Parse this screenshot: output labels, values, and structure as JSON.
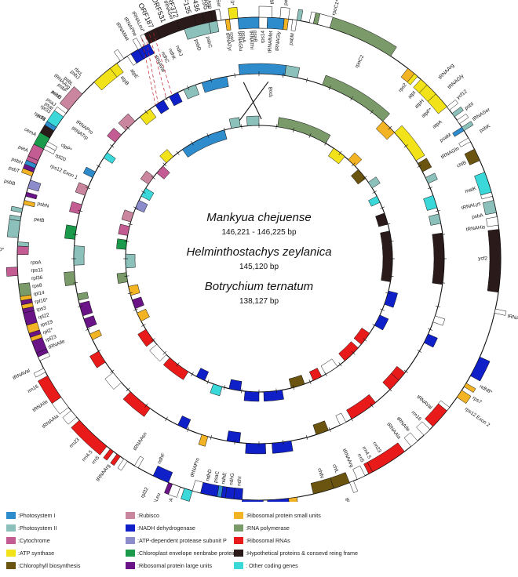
{
  "species": [
    {
      "name": "Mankyua chejuense",
      "size": "146,221 - 146,225 bp"
    },
    {
      "name": "Helminthostachys zeylanica",
      "size": "145,120 bp"
    },
    {
      "name": "Botrychium ternatum",
      "size": "138,127 bp"
    }
  ],
  "colors": {
    "photosystem_i": "#2e8ccc",
    "photosystem_ii": "#8cc0bb",
    "cytochrome": "#c45c94",
    "atp_synthase": "#f2e21a",
    "chlorophyll": "#6b5410",
    "rubisco": "#c9869e",
    "nadh": "#1020c8",
    "clp": "#8c8ccc",
    "envelope": "#1a9a4a",
    "rpl": "#6a1488",
    "rps": "#f2b324",
    "rna_pol": "#7a9a6a",
    "rrna": "#e81a1a",
    "ycf": "#2a1a1a",
    "other": "#3ad8d8",
    "trna": "#ffffff"
  },
  "legend": [
    {
      "key": "photosystem_i",
      "label": ":Photosystem I"
    },
    {
      "key": "photosystem_ii",
      "label": ":Photosystem II"
    },
    {
      "key": "cytochrome",
      "label": ":Cytochrome"
    },
    {
      "key": "atp_synthase",
      "label": ":ATP synthase"
    },
    {
      "key": "chlorophyll",
      "label": ":Chlorophyll biosynthesis"
    },
    {
      "key": "rubisco",
      "label": ":Rubisco"
    },
    {
      "key": "nadh",
      "label": ":NADH dehydrogenase"
    },
    {
      "key": "clp",
      "label": ":ATP-dependent protease subunit P"
    },
    {
      "key": "envelope",
      "label": ":Chloroplast envelope nenbrabe protein"
    },
    {
      "key": "rpl",
      "label": ":Ribosomal protein large units"
    },
    {
      "key": "rps",
      "label": ":Ribosomal protein small units"
    },
    {
      "key": "rna_pol",
      "label": ":RNA polymerase"
    },
    {
      "key": "rrna",
      "label": ":Ribosomal RNAs"
    },
    {
      "key": "ycf",
      "label": ":Hypothetical proteins & consevd reing frame"
    },
    {
      "key": "other",
      "label": ": Other coding genes"
    }
  ],
  "labels": [
    {
      "t": "tRNACys",
      "a": 3,
      "s": "out",
      "r": 0
    },
    {
      "t": "petN",
      "a": 6,
      "s": "out",
      "r": 0
    },
    {
      "t": "psbM",
      "a": 8.5,
      "s": "in",
      "r": 0
    },
    {
      "t": "tRNAAsp",
      "a": 349,
      "s": "out",
      "r": 0
    },
    {
      "t": "tRNATyr",
      "a": 352,
      "s": "in",
      "r": 0
    },
    {
      "t": "tRNAGlu",
      "a": 355,
      "s": "in",
      "r": 0
    },
    {
      "t": "tRNAThr",
      "a": 358,
      "s": "in",
      "r": 0
    },
    {
      "t": "tRNASer",
      "a": 340,
      "s": "out",
      "r": 0
    },
    {
      "t": "psbD",
      "a": 344,
      "s": "in",
      "r": 0
    },
    {
      "t": "psbC",
      "a": 347,
      "s": "in",
      "r": 0
    },
    {
      "t": "rpoC1*",
      "a": 17,
      "s": "out",
      "r": 0
    },
    {
      "t": "rpoC2",
      "a": 27,
      "s": "in",
      "r": 0
    },
    {
      "t": "rps2",
      "a": 40,
      "s": "in",
      "r": 0
    },
    {
      "t": "atpI",
      "a": 43,
      "s": "in",
      "r": 0
    },
    {
      "t": "atpH",
      "a": 46,
      "s": "in",
      "r": 0
    },
    {
      "t": "atpF*",
      "a": 49,
      "s": "in",
      "r": 0
    },
    {
      "t": "atpA",
      "a": 53,
      "s": "in",
      "r": 0
    },
    {
      "t": "tRNAArg",
      "a": 45,
      "s": "out",
      "r": 0
    },
    {
      "t": "tRNAGly",
      "a": 48,
      "s": "out",
      "r": 0
    },
    {
      "t": "ycf12",
      "a": 51,
      "s": "out",
      "r": 0
    },
    {
      "t": "psbI",
      "a": 54,
      "s": "out",
      "r": 0
    },
    {
      "t": "tRNASer",
      "a": 57,
      "s": "out",
      "r": 0
    },
    {
      "t": "psbK",
      "a": 60,
      "s": "out",
      "r": 0
    },
    {
      "t": "psaM",
      "a": 57,
      "s": "in",
      "r": 0
    },
    {
      "t": "tRNAGln",
      "a": 61,
      "s": "in",
      "r": 0
    },
    {
      "t": "chlB",
      "a": 65,
      "s": "in",
      "r": 0
    },
    {
      "t": "matK",
      "a": 72,
      "s": "in",
      "r": 0
    },
    {
      "t": "tRNALys",
      "a": 76,
      "s": "in",
      "r": 0
    },
    {
      "t": "psbA",
      "a": 79,
      "s": "in",
      "r": 0
    },
    {
      "t": "tRNAHis",
      "a": 82,
      "s": "in",
      "r": 0
    },
    {
      "t": "ycf2",
      "a": 90,
      "s": "in",
      "r": 0
    },
    {
      "t": "tRNALeu",
      "a": 103,
      "s": "out",
      "r": 0
    },
    {
      "t": "ndhB*",
      "a": 120,
      "s": "out",
      "r": 0
    },
    {
      "t": "rps7",
      "a": 123,
      "s": "out",
      "r": 0
    },
    {
      "t": "rps12 Exon 2",
      "a": 126,
      "s": "out",
      "r": 0
    },
    {
      "t": "tRNAVal",
      "a": 131,
      "s": "in",
      "r": 0
    },
    {
      "t": "rrn16",
      "a": 135,
      "s": "in",
      "r": 0
    },
    {
      "t": "tRNAIle",
      "a": 139,
      "s": "in",
      "r": 0
    },
    {
      "t": "tRNAAla",
      "a": 142,
      "s": "in",
      "r": 0
    },
    {
      "t": "rrn23",
      "a": 148,
      "s": "in",
      "r": 0
    },
    {
      "t": "rrn4.5",
      "a": 151,
      "s": "in",
      "r": 0
    },
    {
      "t": "rrn5",
      "a": 153,
      "s": "in",
      "r": 0
    },
    {
      "t": "tRNAArg",
      "a": 156,
      "s": "in",
      "r": 0
    },
    {
      "t": "tRNAAsn",
      "a": 160,
      "s": "out",
      "r": 0
    },
    {
      "t": "chlL",
      "a": 160,
      "s": "in",
      "r": 0
    },
    {
      "t": "chlN",
      "a": 164,
      "s": "in",
      "r": 0
    },
    {
      "t": "rps15",
      "a": 175,
      "s": "out",
      "r": 0
    },
    {
      "t": "ndhH",
      "a": 178,
      "s": "out",
      "r": 0
    },
    {
      "t": "ndhA*",
      "a": 182,
      "s": "out",
      "r": 0
    },
    {
      "t": "ndhI",
      "a": 185,
      "s": "in",
      "r": 0
    },
    {
      "t": "ndhG",
      "a": 187,
      "s": "in",
      "r": 0
    },
    {
      "t": "ndhE",
      "a": 189,
      "s": "in",
      "r": 0
    },
    {
      "t": "psaC",
      "a": 191,
      "s": "in",
      "r": 0
    },
    {
      "t": "ndhD",
      "a": 193,
      "s": "in",
      "r": 0
    },
    {
      "t": "ccsA",
      "a": 200,
      "s": "out",
      "r": 0
    },
    {
      "t": "tRNALeu",
      "a": 203,
      "s": "out",
      "r": 0
    },
    {
      "t": "rpl32",
      "a": 206,
      "s": "out",
      "r": 0
    },
    {
      "t": "ndhF",
      "a": 206,
      "s": "in",
      "r": 0
    },
    {
      "t": "tRNAPro",
      "a": 197,
      "s": "in",
      "r": 0
    },
    {
      "t": "tRNAAsn",
      "a": 213,
      "s": "in",
      "r": 0
    },
    {
      "t": "tRNAArg",
      "a": 216,
      "s": "out",
      "r": 0
    },
    {
      "t": "rrn5",
      "a": 219,
      "s": "out",
      "r": 0
    },
    {
      "t": "rrn4.5",
      "a": 221,
      "s": "out",
      "r": 0
    },
    {
      "t": "rrn23",
      "a": 225,
      "s": "out",
      "r": 0
    },
    {
      "t": "tRNAAla",
      "a": 232,
      "s": "out",
      "r": 0
    },
    {
      "t": "tRNAIle",
      "a": 236,
      "s": "out",
      "r": 0
    },
    {
      "t": "rrn16",
      "a": 240,
      "s": "out",
      "r": 0
    },
    {
      "t": "tRNAVal",
      "a": 244,
      "s": "out",
      "r": 0
    },
    {
      "t": "tRNAIle",
      "a": 247,
      "s": "in",
      "r": 0
    },
    {
      "t": "rpl23",
      "a": 249,
      "s": "in",
      "r": 0
    },
    {
      "t": "rpl2*",
      "a": 251,
      "s": "in",
      "r": 0
    },
    {
      "t": "rps19",
      "a": 253,
      "s": "in",
      "r": 0
    },
    {
      "t": "rpl22",
      "a": 255,
      "s": "in",
      "r": 0
    },
    {
      "t": "rps3",
      "a": 257,
      "s": "in",
      "r": 0
    },
    {
      "t": "rpl16*",
      "a": 259,
      "s": "in",
      "r": 0
    },
    {
      "t": "rpl14",
      "a": 261,
      "s": "in",
      "r": 0
    },
    {
      "t": "rps8",
      "a": 263,
      "s": "in",
      "r": 0
    },
    {
      "t": "rpl36",
      "a": 265,
      "s": "in",
      "r": 0
    },
    {
      "t": "rps11",
      "a": 267,
      "s": "in",
      "r": 0
    },
    {
      "t": "rpoA",
      "a": 269,
      "s": "in",
      "r": 0
    },
    {
      "t": "petD*",
      "a": 272,
      "s": "out",
      "r": 0
    },
    {
      "t": "petB",
      "a": 280,
      "s": "in",
      "r": 0
    },
    {
      "t": "psbN",
      "a": 284,
      "s": "in",
      "r": 0
    },
    {
      "t": "psbB",
      "a": 287,
      "s": "out",
      "r": 0
    },
    {
      "t": "psbT",
      "a": 290,
      "s": "out",
      "r": 0
    },
    {
      "t": "psbH",
      "a": 292,
      "s": "out",
      "r": 0
    },
    {
      "t": "rps12 Exon 1",
      "a": 294,
      "s": "in",
      "r": 0
    },
    {
      "t": "rpl20",
      "a": 297,
      "s": "in",
      "r": 0
    },
    {
      "t": "clpP*",
      "a": 300,
      "s": "in",
      "r": 0
    },
    {
      "t": "rps18",
      "a": 303,
      "s": "out",
      "r": 0
    },
    {
      "t": "rpl33",
      "a": 305,
      "s": "out",
      "r": 0
    },
    {
      "t": "psaJ",
      "a": 307,
      "s": "out",
      "r": 0
    },
    {
      "t": "psbE",
      "a": 309,
      "s": "out",
      "r": 0
    },
    {
      "t": "psbF",
      "a": 311,
      "s": "out",
      "r": 0
    },
    {
      "t": "psbL",
      "a": 313,
      "s": "out",
      "r": 0
    },
    {
      "t": "psbJ",
      "a": 315,
      "s": "out",
      "r": 0
    },
    {
      "t": "tRNATrp",
      "a": 305,
      "s": "in",
      "r": 0
    },
    {
      "t": "tRNAPro",
      "a": 307,
      "s": "in",
      "r": 0
    },
    {
      "t": "petA",
      "a": 295,
      "s": "out",
      "r": 0
    },
    {
      "t": "cemA",
      "a": 299,
      "s": "out",
      "r": 0
    },
    {
      "t": "ycf4",
      "a": 303,
      "s": "out",
      "r": 0
    },
    {
      "t": "psaI",
      "a": 306,
      "s": "out",
      "r": 0
    },
    {
      "t": "accD",
      "a": 309,
      "s": "out",
      "r": 0
    },
    {
      "t": "tRNAArg",
      "a": 312,
      "s": "out",
      "r": 0
    },
    {
      "t": "rbcL",
      "a": 316,
      "s": "out",
      "r": 0
    },
    {
      "t": "atpB",
      "a": 323,
      "s": "in",
      "r": 0
    },
    {
      "t": "atpE",
      "a": 326,
      "s": "in",
      "r": 0
    },
    {
      "t": "tRNAMet",
      "a": 329,
      "s": "out",
      "r": 0
    },
    {
      "t": "tRNAVal",
      "a": 333,
      "s": "in",
      "r": 0
    },
    {
      "t": "ndhC",
      "a": 335,
      "s": "in",
      "r": 0
    },
    {
      "t": "ndhK",
      "a": 337,
      "s": "in",
      "r": 0
    },
    {
      "t": "ndhJ",
      "a": 339,
      "s": "in",
      "r": 0
    },
    {
      "t": "tRNAPhe",
      "a": 331,
      "s": "out",
      "r": 0
    },
    {
      "t": "tRNALeu*",
      "a": 333,
      "s": "out",
      "r": 0
    },
    {
      "t": "ORF187",
      "a": 335,
      "s": "out",
      "r": 0
    },
    {
      "t": "ORF531",
      "a": 338,
      "s": "out",
      "r": 0
    },
    {
      "t": "ORF372",
      "a": 341,
      "s": "out",
      "r": 0
    },
    {
      "t": "ORF135",
      "a": 344,
      "s": "out",
      "r": 0
    },
    {
      "t": "ORF436",
      "a": 346,
      "s": "out",
      "r": 0
    },
    {
      "t": "ORF295",
      "a": 348,
      "s": "out",
      "r": 0
    },
    {
      "t": "tRNASer",
      "a": 351,
      "s": "out",
      "r": 0
    },
    {
      "t": "rps4",
      "a": 353,
      "s": "in",
      "r": 0
    },
    {
      "t": "ycf3*",
      "a": 354,
      "s": "out",
      "r": 0
    },
    {
      "t": "psaA",
      "a": 356,
      "s": "in",
      "r": 0
    },
    {
      "t": "psaB",
      "a": 359,
      "s": "in",
      "r": 0
    },
    {
      "t": "rps14",
      "a": 361,
      "s": "in",
      "r": 0
    },
    {
      "t": "tRNAfMet",
      "a": 363,
      "s": "in",
      "r": 0
    },
    {
      "t": "tRNAGly",
      "a": 365,
      "s": "in",
      "r": 0
    },
    {
      "t": "rpoB",
      "a": 4,
      "s": "in",
      "r": 1
    }
  ]
}
